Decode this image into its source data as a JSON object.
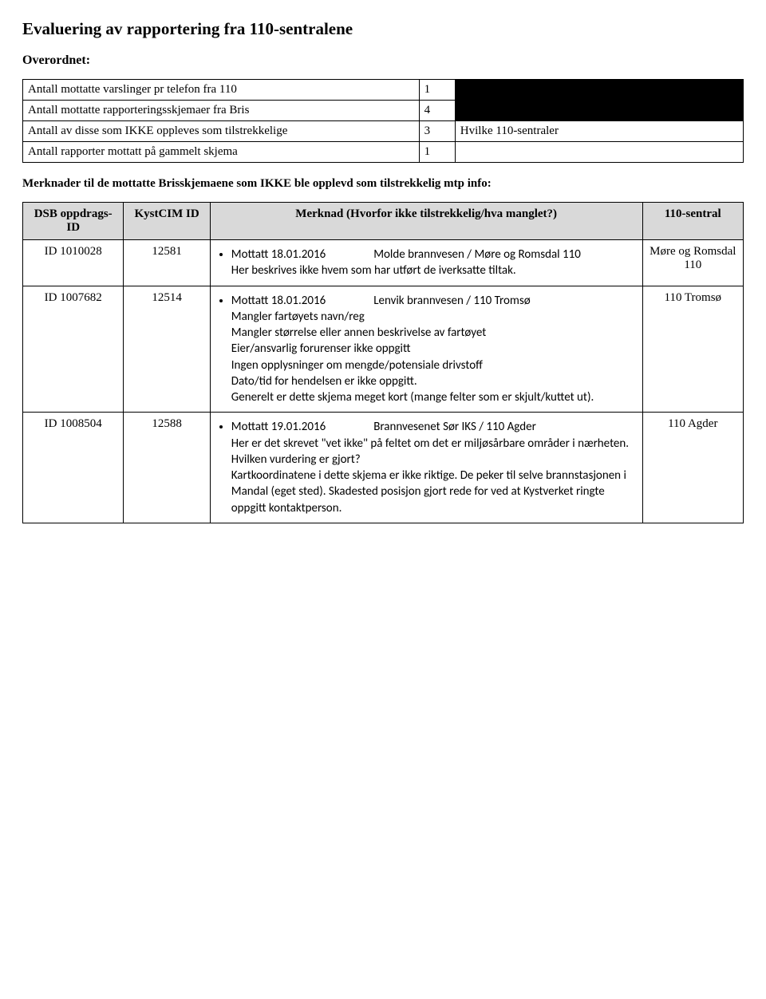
{
  "title": "Evaluering av rapportering fra 110-sentralene",
  "sub": "Overordnet:",
  "summary": {
    "rows": [
      {
        "label": "Antall mottatte varslinger pr telefon fra 110",
        "value": "1",
        "note": "",
        "noteBlack": true
      },
      {
        "label": "Antall mottatte rapporteringsskjemaer fra Bris",
        "value": "4",
        "note": "",
        "noteBlack": true
      },
      {
        "label": "Antall av disse som IKKE oppleves som tilstrekkelige",
        "value": "3",
        "note": "Hvilke 110-sentraler",
        "noteBlack": false
      },
      {
        "label": "Antall rapporter mottatt på gammelt skjema",
        "value": "1",
        "note": "",
        "noteBlack": false
      }
    ]
  },
  "notePara": "Merknader til de mottatte Brisskjemaene som IKKE ble opplevd som tilstrekkelig mtp info:",
  "detailsHeader": {
    "dsb": "DSB oppdrags-ID",
    "kyst": "KystCIM ID",
    "merk": "Merknad (Hvorfor ikke tilstrekkelig/hva manglet?)",
    "s110": "110-sentral"
  },
  "details": [
    {
      "dsb": "ID 1010028",
      "kyst": "12581",
      "merkLine1a": "Mottatt 18.01.2016",
      "merkLine1b": "Molde brannvesen / Møre og Romsdal 110",
      "merkRest": "Her beskrives ikke hvem som har utført de iverksatte tiltak.",
      "s110": "Møre og Romsdal 110"
    },
    {
      "dsb": "ID 1007682",
      "kyst": "12514",
      "merkLine1a": "Mottatt 18.01.2016",
      "merkLine1b": "Lenvik brannvesen / 110 Tromsø",
      "merkRest": "Mangler fartøyets navn/reg\nMangler størrelse eller annen beskrivelse av fartøyet\nEier/ansvarlig forurenser ikke oppgitt\nIngen opplysninger om mengde/potensiale drivstoff\nDato/tid for hendelsen er ikke oppgitt.\nGenerelt er dette skjema meget kort (mange felter som er skjult/kuttet ut).",
      "s110": "110 Tromsø"
    },
    {
      "dsb": "ID 1008504",
      "kyst": "12588",
      "merkLine1a": "Mottatt 19.01.2016",
      "merkLine1b": "Brannvesenet Sør IKS / 110 Agder",
      "merkRest": "Her er det skrevet \"vet ikke\" på feltet om det er miljøsårbare områder i nærheten. Hvilken vurdering er gjort?\nKartkoordinatene i dette skjema er ikke riktige. De peker til selve brannstasjonen i Mandal (eget sted). Skadested posisjon gjort rede for ved at Kystverket ringte oppgitt kontaktperson.",
      "s110": "110 Agder"
    }
  ]
}
